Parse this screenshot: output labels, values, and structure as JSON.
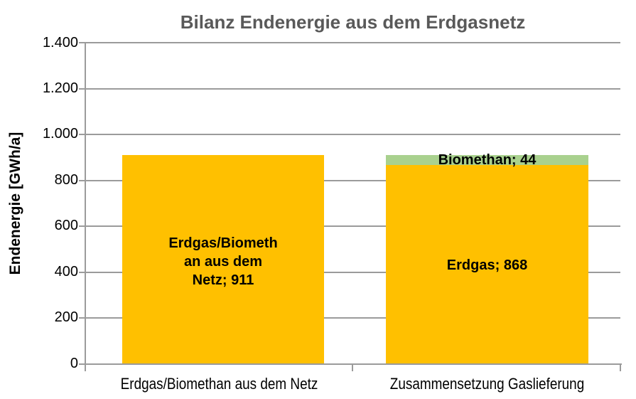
{
  "title": "Bilanz Endenergie aus dem Erdgasnetz",
  "colors": {
    "erdgas_bar": "#FFC000",
    "biomethan_bar": "#A9D18E",
    "axis_grid": "#9B9B9B",
    "title_text": "#595959",
    "label_text": "#000000"
  },
  "chart_data": {
    "type": "bar",
    "stacked": true,
    "title": "Bilanz Endenergie aus dem Erdgasnetz",
    "ylabel": "Endenergie [GWh/a]",
    "xlabel": "",
    "ylim": [
      0,
      1400
    ],
    "ytick_step": 200,
    "yticks": [
      "1.400",
      "1.200",
      "1.000",
      "800",
      "600",
      "400",
      "200",
      "0"
    ],
    "grid": true,
    "legend": "none",
    "categories": [
      "Erdgas/Biomethan aus dem Netz",
      "Zusammensetzung Gaslieferung"
    ],
    "bars": [
      {
        "category": "Erdgas/Biomethan aus dem Netz",
        "segments": [
          {
            "name": "Erdgas/Biomethan aus dem Netz",
            "value": 911,
            "color": "#FFC000",
            "label": "Erdgas/Biometh\nan aus dem\nNetz; 911"
          }
        ]
      },
      {
        "category": "Zusammensetzung Gaslieferung",
        "segments": [
          {
            "name": "Erdgas",
            "value": 868,
            "color": "#FFC000",
            "label": "Erdgas; 868"
          },
          {
            "name": "Biomethan",
            "value": 44,
            "color": "#A9D18E",
            "label": "Biomethan; 44"
          }
        ]
      }
    ]
  }
}
